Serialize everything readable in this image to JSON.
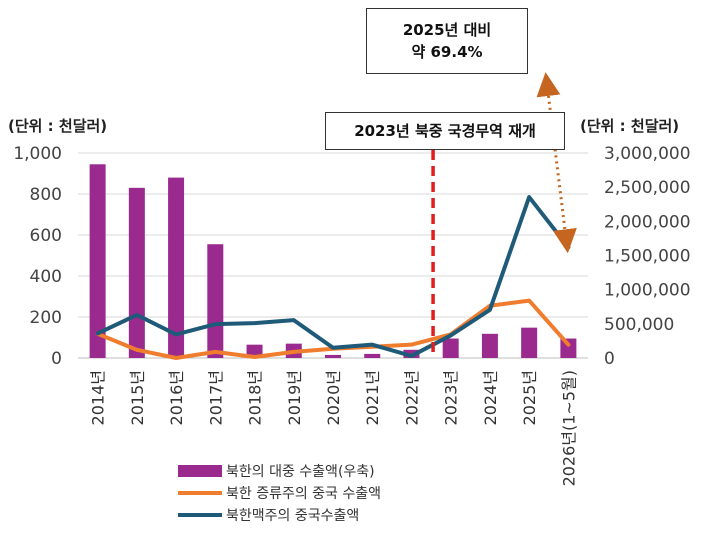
{
  "chart_data": {
    "type": "bar+line",
    "categories": [
      "2014년",
      "2015년",
      "2016년",
      "2017년",
      "2018년",
      "2019년",
      "2020년",
      "2021년",
      "2022년",
      "2023년",
      "2024년",
      "2025년",
      "2026년(1~5월)"
    ],
    "left_axis": {
      "unit_label": "(단위 : 천달러)",
      "ylim": [
        0,
        1000
      ],
      "ticks": [
        "0",
        "200",
        "400",
        "600",
        "800",
        "1,000"
      ]
    },
    "right_axis": {
      "unit_label": "(단위 : 천달러)",
      "ylim": [
        0,
        3000000
      ],
      "ticks": [
        "0",
        "500,000",
        "1,000,000",
        "1,500,000",
        "2,000,000",
        "2,500,000",
        "3,000,000"
      ]
    },
    "series": [
      {
        "name": "북한의 대중 수출액(우축)",
        "kind": "bar",
        "axis": "left",
        "color": "#9b2a8e",
        "values": [
          945,
          830,
          880,
          555,
          65,
          70,
          15,
          20,
          40,
          95,
          118,
          148,
          95
        ]
      },
      {
        "name": "북한 증류주의 중국 수출액",
        "kind": "line",
        "axis": "left",
        "color": "#f07d2e",
        "values": [
          118,
          40,
          0,
          30,
          5,
          30,
          45,
          55,
          65,
          115,
          255,
          280,
          65
        ]
      },
      {
        "name": "북한맥주의 중국수출액",
        "kind": "line",
        "axis": "left",
        "color": "#1f5a78",
        "values": [
          120,
          210,
          115,
          165,
          170,
          185,
          50,
          65,
          10,
          110,
          235,
          785,
          540
        ]
      }
    ],
    "event": {
      "label": "2023년 북중 국경무역 재개",
      "position_category": "2023년"
    },
    "callout": {
      "line1": "2025년 대비",
      "line2": "약 69.4%"
    },
    "grid": true,
    "legend_position": "bottom"
  }
}
